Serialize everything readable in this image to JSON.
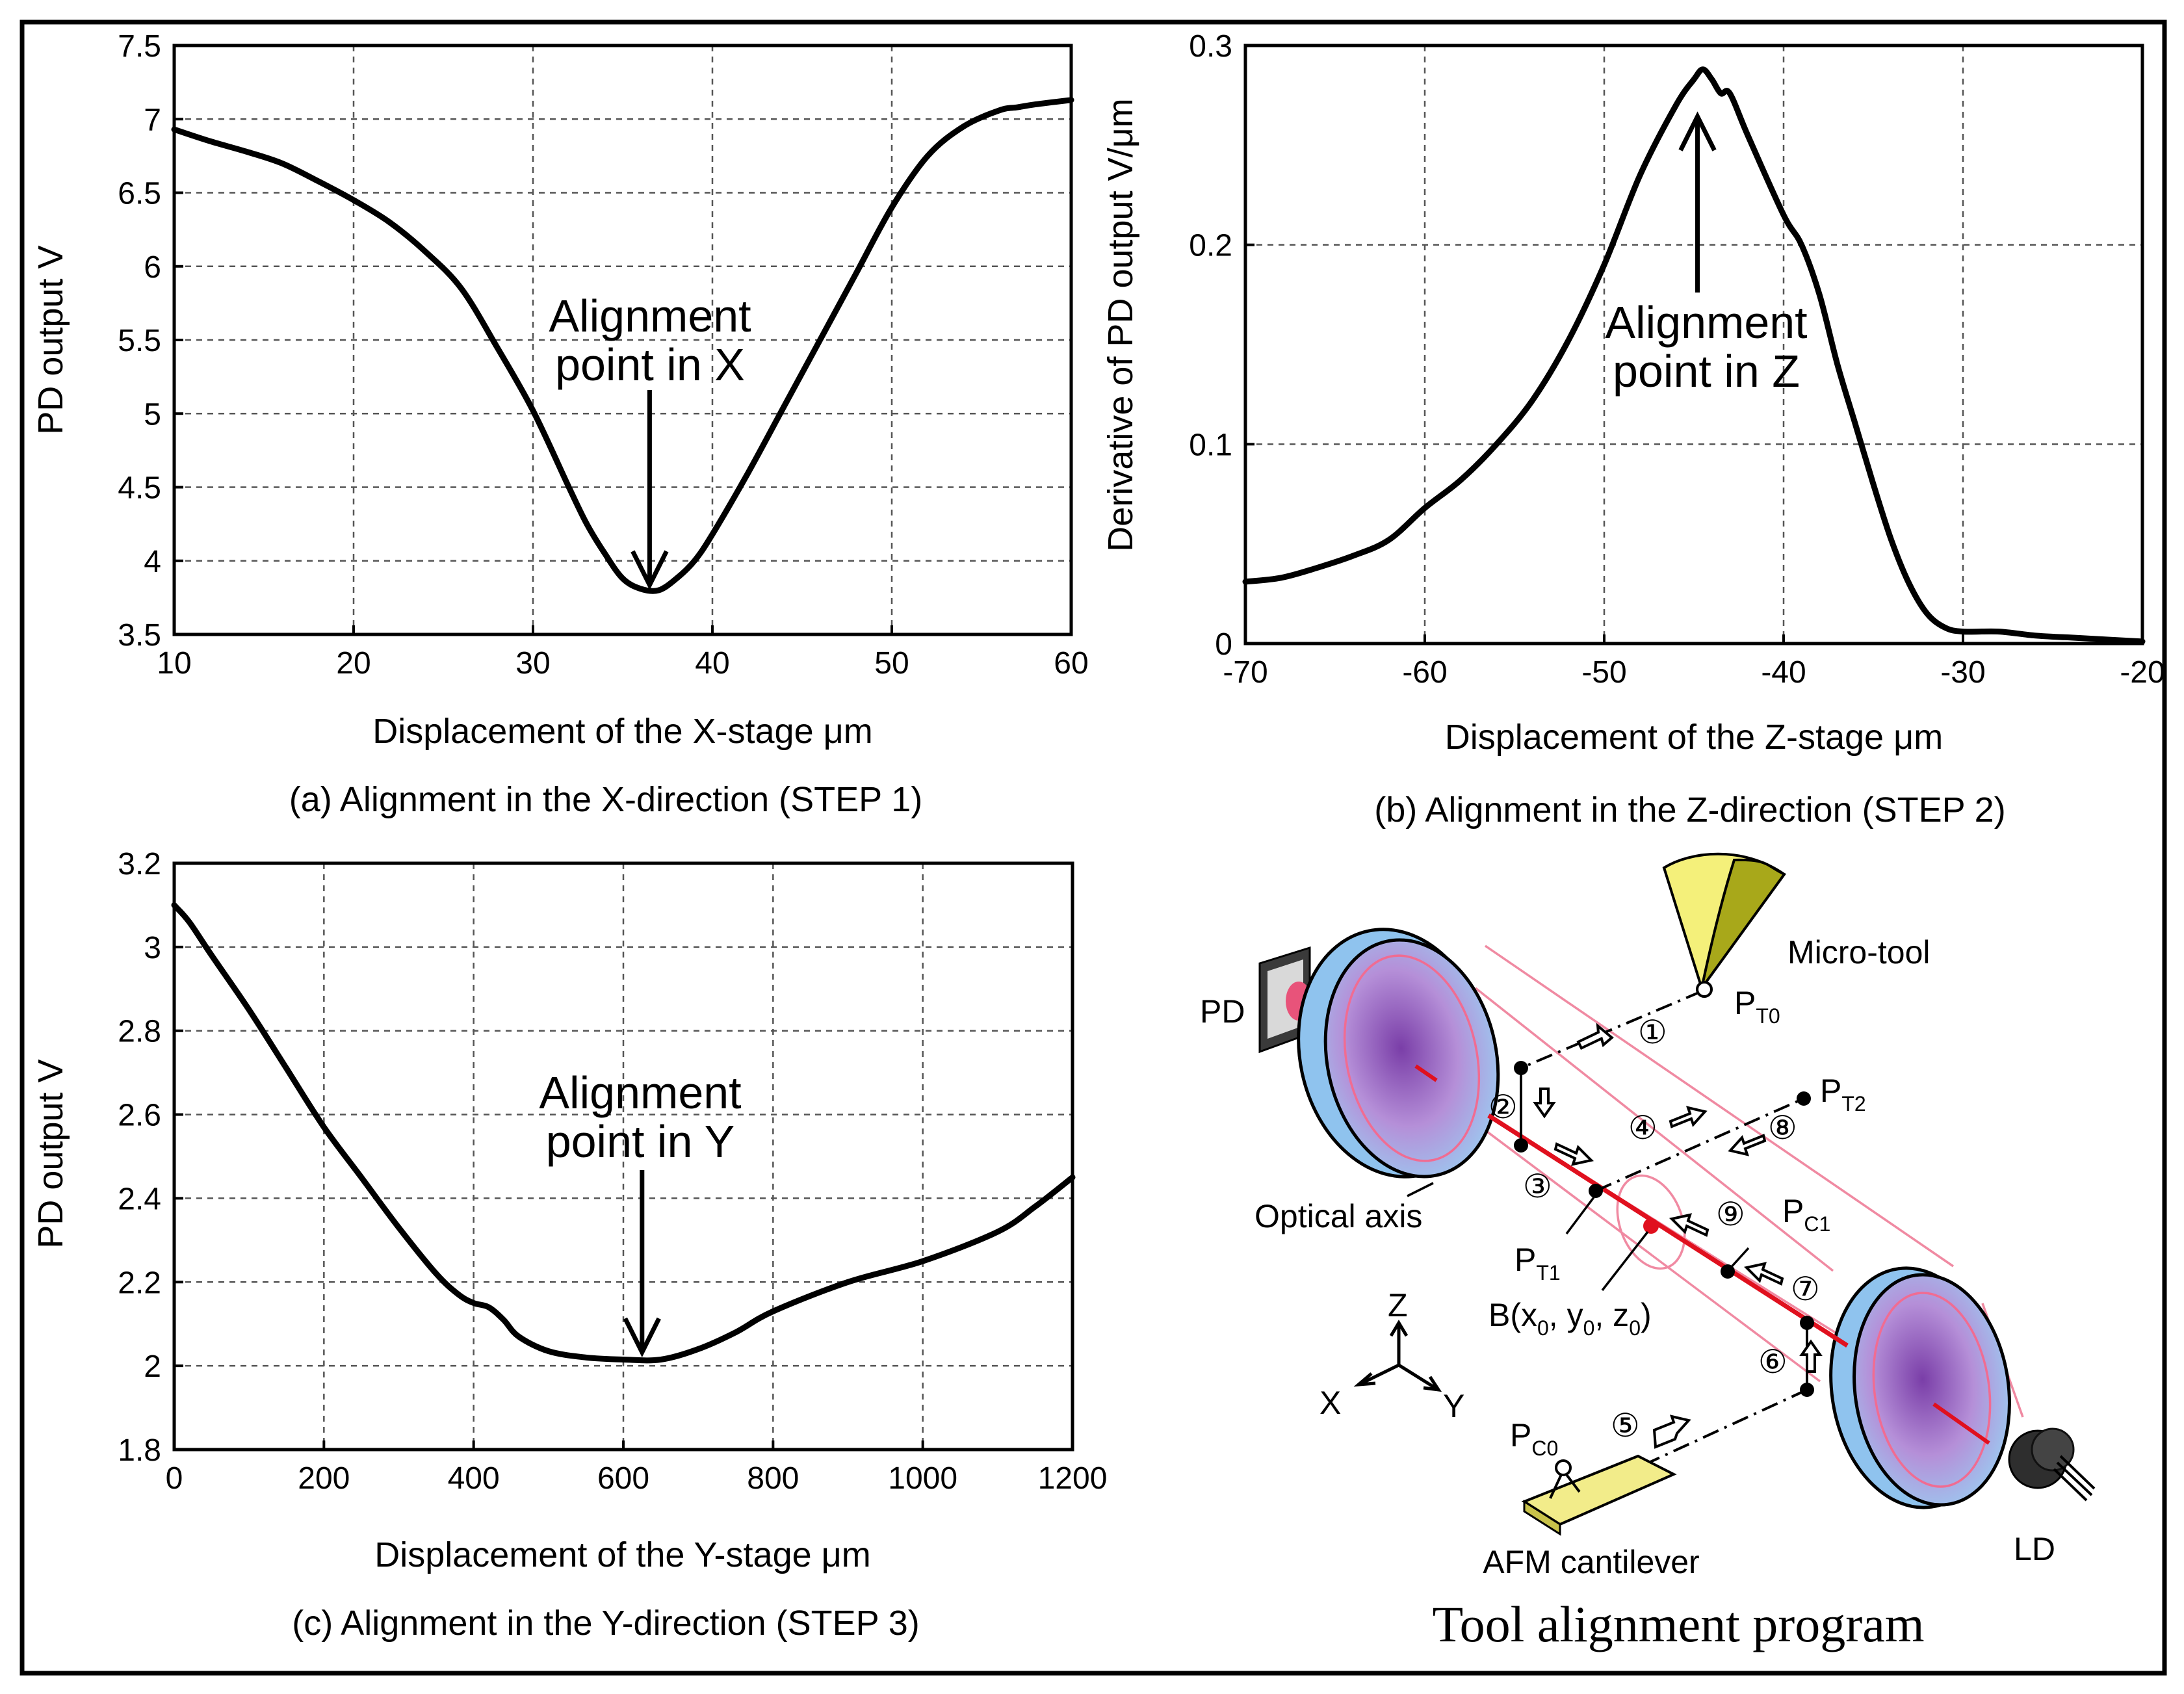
{
  "chart_data": [
    {
      "type": "line",
      "id": "a",
      "xlabel": "Displacement of the X-stage",
      "xunit": "μm",
      "ylabel": "PD output V",
      "xlim": [
        10,
        60
      ],
      "ylim": [
        3.5,
        7.5
      ],
      "xticks": [
        "10",
        "20",
        "30",
        "40",
        "50",
        "60"
      ],
      "yticks": [
        "3.5",
        "4",
        "4.5",
        "5",
        "5.5",
        "6",
        "6.5",
        "7",
        "7.5"
      ],
      "grid": true,
      "caption": "(a) Alignment in the X-direction (STEP 1)",
      "annotation": [
        "Alignment",
        "point in X"
      ],
      "arrow_target": [
        36.5,
        3.8
      ],
      "x": [
        10,
        12,
        14,
        16,
        18,
        20,
        22,
        24,
        26,
        28,
        30,
        32,
        33,
        34,
        35,
        36,
        37,
        38,
        39,
        40,
        42,
        44,
        46,
        48,
        50,
        52,
        54,
        56,
        57,
        58,
        60
      ],
      "y": [
        6.93,
        6.85,
        6.78,
        6.7,
        6.58,
        6.45,
        6.3,
        6.1,
        5.85,
        5.45,
        5.02,
        4.5,
        4.25,
        4.05,
        3.88,
        3.81,
        3.8,
        3.88,
        4.0,
        4.18,
        4.6,
        5.05,
        5.5,
        5.95,
        6.4,
        6.75,
        6.95,
        7.06,
        7.08,
        7.1,
        7.13
      ]
    },
    {
      "type": "line",
      "id": "b",
      "xlabel": "Displacement of the Z-stage",
      "xunit": "μm",
      "ylabel": "Derivative of PD output V/μm",
      "xlim": [
        -70,
        -20
      ],
      "ylim": [
        0,
        0.3
      ],
      "xticks": [
        "-70",
        "-60",
        "-50",
        "-40",
        "-30",
        "-20"
      ],
      "yticks": [
        "0",
        "0.1",
        "0.2",
        "0.3"
      ],
      "grid": true,
      "caption": "(b) Alignment in the Z-direction (STEP 2)",
      "annotation": [
        "Alignment",
        "point in Z"
      ],
      "arrow_target": [
        -44.8,
        0.267
      ],
      "x": [
        -70,
        -68,
        -66,
        -64,
        -62,
        -60,
        -58,
        -56,
        -54,
        -52,
        -50,
        -48,
        -46,
        -45,
        -44.5,
        -44,
        -43.5,
        -43,
        -42,
        -40,
        -39,
        -38,
        -37,
        -36,
        -35,
        -34,
        -33,
        -32,
        -31,
        -30,
        -28,
        -26,
        -24,
        -22,
        -20
      ],
      "y": [
        0.031,
        0.033,
        0.038,
        0.044,
        0.052,
        0.068,
        0.082,
        0.1,
        0.122,
        0.152,
        0.19,
        0.235,
        0.27,
        0.283,
        0.288,
        0.283,
        0.276,
        0.276,
        0.255,
        0.215,
        0.2,
        0.175,
        0.14,
        0.11,
        0.08,
        0.052,
        0.03,
        0.015,
        0.008,
        0.006,
        0.006,
        0.004,
        0.003,
        0.002,
        0.001
      ]
    },
    {
      "type": "line",
      "id": "c",
      "xlabel": "Displacement of the Y-stage",
      "xunit": "μm",
      "ylabel": "PD output V",
      "xlim": [
        0,
        1200
      ],
      "ylim": [
        1.8,
        3.2
      ],
      "xticks": [
        "0",
        "200",
        "400",
        "600",
        "800",
        "1000",
        "1200"
      ],
      "yticks": [
        "1.8",
        "2",
        "2.2",
        "2.4",
        "2.6",
        "2.8",
        "3",
        "3.2"
      ],
      "grid": true,
      "caption": "(c) Alignment in the Y-direction (STEP 3)",
      "annotation": [
        "Alignment",
        "point in Y"
      ],
      "arrow_target": [
        625,
        2.02
      ],
      "x": [
        0,
        20,
        50,
        100,
        150,
        200,
        250,
        300,
        350,
        380,
        400,
        420,
        440,
        460,
        500,
        550,
        600,
        650,
        700,
        750,
        800,
        900,
        1000,
        1100,
        1150,
        1200
      ],
      "y": [
        3.1,
        3.06,
        2.98,
        2.85,
        2.71,
        2.57,
        2.45,
        2.33,
        2.22,
        2.17,
        2.15,
        2.14,
        2.11,
        2.07,
        2.035,
        2.02,
        2.015,
        2.015,
        2.04,
        2.08,
        2.13,
        2.2,
        2.25,
        2.32,
        2.38,
        2.45
      ]
    }
  ],
  "diagram": {
    "title": "Tool alignment program",
    "labels": {
      "pd": "PD",
      "micro_tool": "Micro-tool",
      "optical_axis": "Optical axis",
      "b_point": "B(x",
      "b_sub0": "0",
      "b_y": ", y",
      "b_z": ", z",
      "b_close": ")",
      "afm": "AFM cantilever",
      "ld": "LD",
      "axis_z": "Z",
      "axis_x": "X",
      "axis_y": "Y"
    },
    "points": {
      "pt0": "P",
      "pt0_sub": "T0",
      "pt1": "P",
      "pt1_sub": "T1",
      "pt2": "P",
      "pt2_sub": "T2",
      "pc0": "P",
      "pc0_sub": "C0",
      "pc1": "P",
      "pc1_sub": "C1"
    },
    "steps": [
      "①",
      "②",
      "③",
      "④",
      "⑤",
      "⑥",
      "⑦",
      "⑧",
      "⑨"
    ],
    "colors": {
      "lens": "#8fc3ee",
      "lens_core": "#7a3ea8",
      "beam": "#f08aa2",
      "axis_line": "#e0101e",
      "tool_light": "#f4f07a",
      "tool_dark": "#a8a81a",
      "cantilever": "#f2ec8a"
    }
  }
}
